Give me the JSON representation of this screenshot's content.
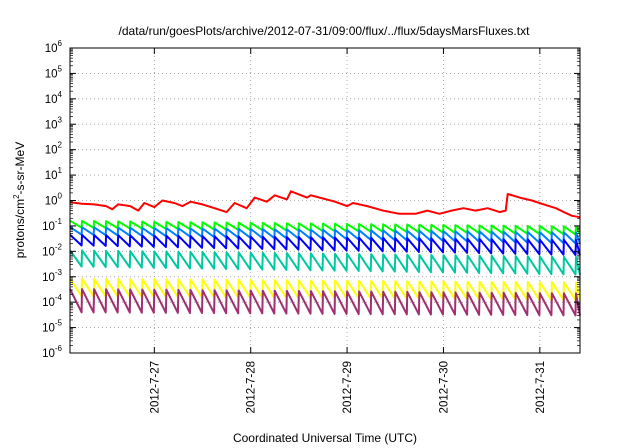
{
  "chart_data": {
    "type": "line",
    "title": "/data/run/goesPlots/archive/2012-07-31/09:00/flux/../flux/5daysMarsFluxes.txt",
    "xlabel": "Coordinated Universal Time (UTC)",
    "ylabel_parts": [
      "protons/cm",
      "2",
      "-s-sr-MeV"
    ],
    "x_scale": "date",
    "y_scale": "log",
    "xlim": [
      "2012-07-26 03:00",
      "2012-07-31 10:00"
    ],
    "ylim": [
      1e-06,
      1000000.0
    ],
    "x_ticks": [
      "2012-7-27",
      "2012-7-28",
      "2012-7-29",
      "2012-7-30",
      "2012-7-31"
    ],
    "y_tick_exponents": [
      -6,
      -5,
      -4,
      -3,
      -2,
      -1,
      0,
      1,
      2,
      3,
      4,
      5,
      6
    ],
    "grid": true,
    "legend": "none",
    "series": [
      {
        "color": "#ff0000",
        "points": [
          [
            "2012-07-26 03:00",
            0.85
          ],
          [
            "2012-07-26 06:00",
            0.75
          ],
          [
            "2012-07-26 09:00",
            0.7
          ],
          [
            "2012-07-26 12:00",
            0.6
          ],
          [
            "2012-07-26 13:30",
            0.45
          ],
          [
            "2012-07-26 15:00",
            0.7
          ],
          [
            "2012-07-26 18:00",
            0.6
          ],
          [
            "2012-07-26 20:00",
            0.4
          ],
          [
            "2012-07-26 21:30",
            0.8
          ],
          [
            "2012-07-27 00:00",
            0.55
          ],
          [
            "2012-07-27 02:00",
            1.0
          ],
          [
            "2012-07-27 05:00",
            0.8
          ],
          [
            "2012-07-27 07:00",
            0.6
          ],
          [
            "2012-07-27 09:00",
            0.9
          ],
          [
            "2012-07-27 12:00",
            0.7
          ],
          [
            "2012-07-27 15:00",
            0.5
          ],
          [
            "2012-07-27 18:00",
            0.35
          ],
          [
            "2012-07-27 20:00",
            0.8
          ],
          [
            "2012-07-27 23:00",
            0.5
          ],
          [
            "2012-07-28 01:00",
            1.3
          ],
          [
            "2012-07-28 04:00",
            0.9
          ],
          [
            "2012-07-28 06:00",
            1.6
          ],
          [
            "2012-07-28 09:00",
            1.1
          ],
          [
            "2012-07-28 10:00",
            2.3
          ],
          [
            "2012-07-28 14:00",
            1.3
          ],
          [
            "2012-07-28 15:00",
            1.6
          ],
          [
            "2012-07-28 18:00",
            1.2
          ],
          [
            "2012-07-28 21:00",
            0.9
          ],
          [
            "2012-07-29 00:00",
            0.6
          ],
          [
            "2012-07-29 01:30",
            0.8
          ],
          [
            "2012-07-29 05:00",
            0.6
          ],
          [
            "2012-07-29 09:00",
            0.4
          ],
          [
            "2012-07-29 13:00",
            0.3
          ],
          [
            "2012-07-29 17:00",
            0.3
          ],
          [
            "2012-07-29 20:00",
            0.4
          ],
          [
            "2012-07-29 23:00",
            0.3
          ],
          [
            "2012-07-30 02:00",
            0.4
          ],
          [
            "2012-07-30 05:00",
            0.5
          ],
          [
            "2012-07-30 08:00",
            0.4
          ],
          [
            "2012-07-30 11:00",
            0.5
          ],
          [
            "2012-07-30 14:00",
            0.35
          ],
          [
            "2012-07-30 15:30",
            0.4
          ],
          [
            "2012-07-30 16:00",
            1.8
          ],
          [
            "2012-07-30 19:00",
            1.3
          ],
          [
            "2012-07-30 22:00",
            1.0
          ],
          [
            "2012-07-31 01:00",
            0.7
          ],
          [
            "2012-07-31 04:00",
            0.5
          ],
          [
            "2012-07-31 06:00",
            0.35
          ],
          [
            "2012-07-31 08:00",
            0.25
          ],
          [
            "2012-07-31 10:00",
            0.22
          ]
        ]
      },
      {
        "color": "#00ff00",
        "peak_start": 0.16,
        "peak_end": 0.095,
        "min_start": 0.085,
        "min_end": 0.045
      },
      {
        "color": "#0080ff",
        "peak_start": 0.09,
        "peak_end": 0.055,
        "min_start": 0.045,
        "min_end": 0.02
      },
      {
        "color": "#0000ff",
        "peak_start": 0.045,
        "peak_end": 0.028,
        "min_start": 0.017,
        "min_end": 0.007
      },
      {
        "color": "#00c8a0",
        "peak_start": 0.011,
        "peak_end": 0.006,
        "min_start": 0.0025,
        "min_end": 0.0012
      },
      {
        "color": "#ffff00",
        "peak_start": 0.00085,
        "peak_end": 0.0006,
        "min_start": 0.00017,
        "min_end": 0.00012
      },
      {
        "color": "#a03070",
        "peak_start": 0.00033,
        "peak_end": 0.00022,
        "min_start": 4e-05,
        "min_end": 3e-05
      }
    ],
    "sawtooth_period_hours": 3
  }
}
